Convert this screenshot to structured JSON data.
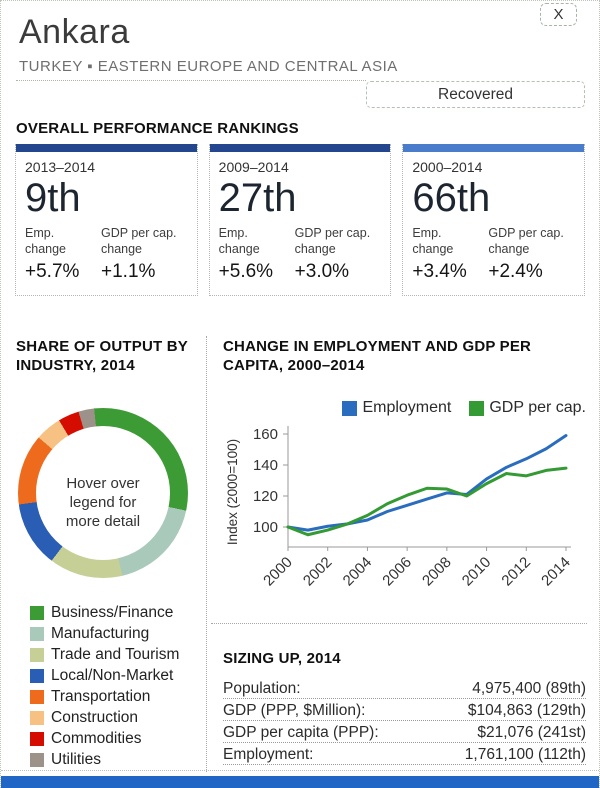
{
  "header": {
    "city": "Ankara",
    "region": "TURKEY ▪ EASTERN EUROPE AND CENTRAL ASIA",
    "close_label": "X",
    "status_label": "Recovered"
  },
  "rankings": {
    "heading": "OVERALL PERFORMANCE RANKINGS",
    "cards": [
      {
        "period": "2013–2014",
        "rank": "9th",
        "accent": "#23468e",
        "metrics": [
          {
            "label": "Emp. change",
            "value": "+5.7%"
          },
          {
            "label": "GDP per cap. change",
            "value": "+1.1%"
          }
        ]
      },
      {
        "period": "2009–2014",
        "rank": "27th",
        "accent": "#23468e",
        "metrics": [
          {
            "label": "Emp. change",
            "value": "+5.6%"
          },
          {
            "label": "GDP per cap. change",
            "value": "+3.0%"
          }
        ]
      },
      {
        "period": "2000–2014",
        "rank": "66th",
        "accent": "#4a7ccc",
        "metrics": [
          {
            "label": "Emp. change",
            "value": "+3.4%"
          },
          {
            "label": "GDP per cap. change",
            "value": "+2.4%"
          }
        ]
      }
    ]
  },
  "industry": {
    "heading": "SHARE OF OUTPUT BY INDUSTRY, 2014",
    "center_note": "Hover over legend for more detail"
  },
  "employment_chart": {
    "heading": "CHANGE IN EMPLOYMENT AND GDP PER CAPITA, 2000–2014"
  },
  "sizing": {
    "heading": "SIZING UP, 2014",
    "rows": [
      {
        "label": "Population:",
        "value": "4,975,400 (89th)"
      },
      {
        "label": "GDP (PPP, $Million):",
        "value": "$104,863 (129th)"
      },
      {
        "label": "GDP per capita (PPP):",
        "value": "$21,076 (241st)"
      },
      {
        "label": "Employment:",
        "value": "1,761,100 (112th)"
      }
    ]
  },
  "chart_data": [
    {
      "type": "pie",
      "subtype": "donut",
      "title": "SHARE OF OUTPUT BY INDUSTRY, 2014",
      "annotation": "Hover over legend for more detail",
      "values_estimated_from_arc_lengths": true,
      "segments": [
        {
          "label": "Business/Finance",
          "value": 30,
          "color": "#3d9b35"
        },
        {
          "label": "Manufacturing",
          "value": 18,
          "color": "#a9c9bb"
        },
        {
          "label": "Trade and Tourism",
          "value": 14,
          "color": "#c5cf96"
        },
        {
          "label": "Local/Non-Market",
          "value": 12.5,
          "color": "#2a5db4"
        },
        {
          "label": "Transportation",
          "value": 13.5,
          "color": "#ee6b1e"
        },
        {
          "label": "Construction",
          "value": 5,
          "color": "#f6c183"
        },
        {
          "label": "Commodities",
          "value": 4,
          "color": "#d40d00"
        },
        {
          "label": "Utilities",
          "value": 3,
          "color": "#9c9289"
        }
      ]
    },
    {
      "type": "line",
      "title": "CHANGE IN EMPLOYMENT AND GDP PER CAPITA, 2000–2014",
      "ylabel": "Index (2000=100)",
      "x": [
        2000,
        2001,
        2002,
        2003,
        2004,
        2005,
        2006,
        2007,
        2008,
        2009,
        2010,
        2011,
        2012,
        2013,
        2014
      ],
      "x_ticks": [
        "2000",
        "2002",
        "2004",
        "2006",
        "2008",
        "2010",
        "2012",
        "2014"
      ],
      "y_ticks": [
        100,
        120,
        140,
        160
      ],
      "ylim": [
        90,
        165
      ],
      "legend_position": "top",
      "series": [
        {
          "name": "Employment",
          "color": "#2a6cbe",
          "values": [
            100,
            98,
            100.5,
            102,
            104.5,
            110,
            114,
            118,
            122,
            121,
            131,
            138.5,
            144,
            150.5,
            159
          ]
        },
        {
          "name": "GDP per cap.",
          "color": "#349a33",
          "values": [
            100,
            95,
            98,
            102,
            107.5,
            115,
            120.5,
            125,
            124.5,
            120,
            128,
            134.5,
            133,
            136.5,
            138
          ]
        }
      ]
    }
  ],
  "colors": {
    "footer_bar": "#2166c4"
  }
}
